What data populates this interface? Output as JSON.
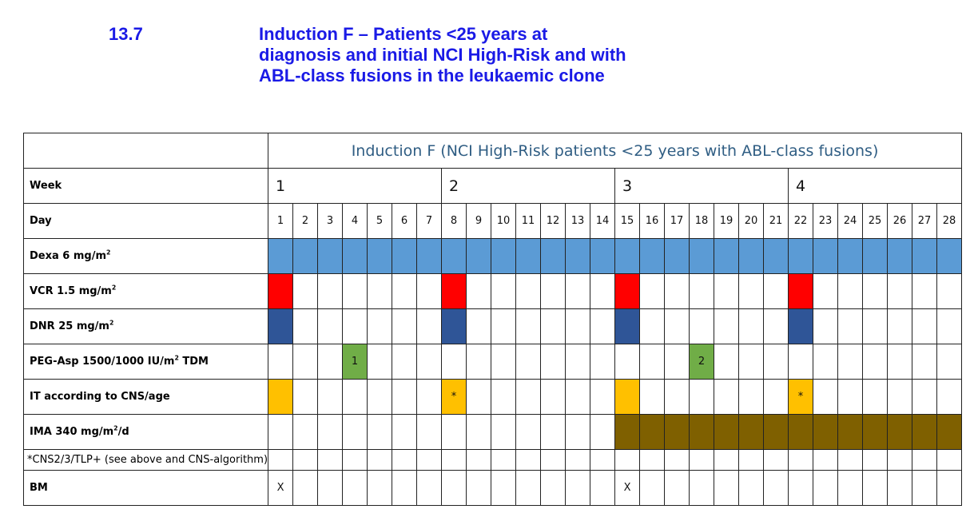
{
  "section": {
    "number": "13.7",
    "title_lines": [
      "Induction F – Patients <25 years at",
      "diagnosis and initial NCI High-Risk and with",
      "ABL-class fusions in the leukaemic clone"
    ]
  },
  "table": {
    "header_title": "Induction F (NCI High-Risk patients <25 years with ABL-class fusions)",
    "week_label": "Week",
    "weeks": [
      "1",
      "2",
      "3",
      "4"
    ],
    "day_label": "Day",
    "days": [
      "1",
      "2",
      "3",
      "4",
      "5",
      "6",
      "7",
      "8",
      "9",
      "10",
      "11",
      "12",
      "13",
      "14",
      "15",
      "16",
      "17",
      "18",
      "19",
      "20",
      "21",
      "22",
      "23",
      "24",
      "25",
      "26",
      "27",
      "28"
    ],
    "rows": [
      {
        "name": "dexa",
        "label": "Dexa 6 mg/m",
        "sup": "2",
        "suffix": "",
        "color": "#5b9bd5",
        "days": "all"
      },
      {
        "name": "vcr",
        "label": "VCR 1.5 mg/m",
        "sup": "2",
        "suffix": "",
        "color": "#ff0000",
        "days": [
          1,
          8,
          15,
          22
        ]
      },
      {
        "name": "dnr",
        "label": "DNR 25 mg/m",
        "sup": "2",
        "suffix": "",
        "color": "#2f5597",
        "days": [
          1,
          8,
          15,
          22
        ]
      },
      {
        "name": "peg-asp",
        "label": "PEG-Asp 1500/1000 IU/m",
        "sup": "2",
        "suffix": " TDM",
        "color": "#70ad47",
        "marks": [
          {
            "day": 4,
            "text": "1"
          },
          {
            "day": 18,
            "text": "2"
          }
        ]
      },
      {
        "name": "it",
        "label": "IT according to CNS/age",
        "color": "#ffc000",
        "marks": [
          {
            "day": 1,
            "text": ""
          },
          {
            "day": 8,
            "text": "*"
          },
          {
            "day": 15,
            "text": ""
          },
          {
            "day": 22,
            "text": "*"
          }
        ]
      },
      {
        "name": "ima",
        "label": "IMA 340 mg/m",
        "sup": "2",
        "suffix": "/d",
        "color": "#7f6000",
        "range": [
          15,
          28
        ]
      }
    ],
    "footnote": "*CNS2/3/TLP+ (see above and CNS-algorithm)",
    "bm": {
      "label": "BM",
      "marks": [
        {
          "day": 1,
          "text": "X"
        },
        {
          "day": 15,
          "text": "X"
        }
      ]
    }
  }
}
